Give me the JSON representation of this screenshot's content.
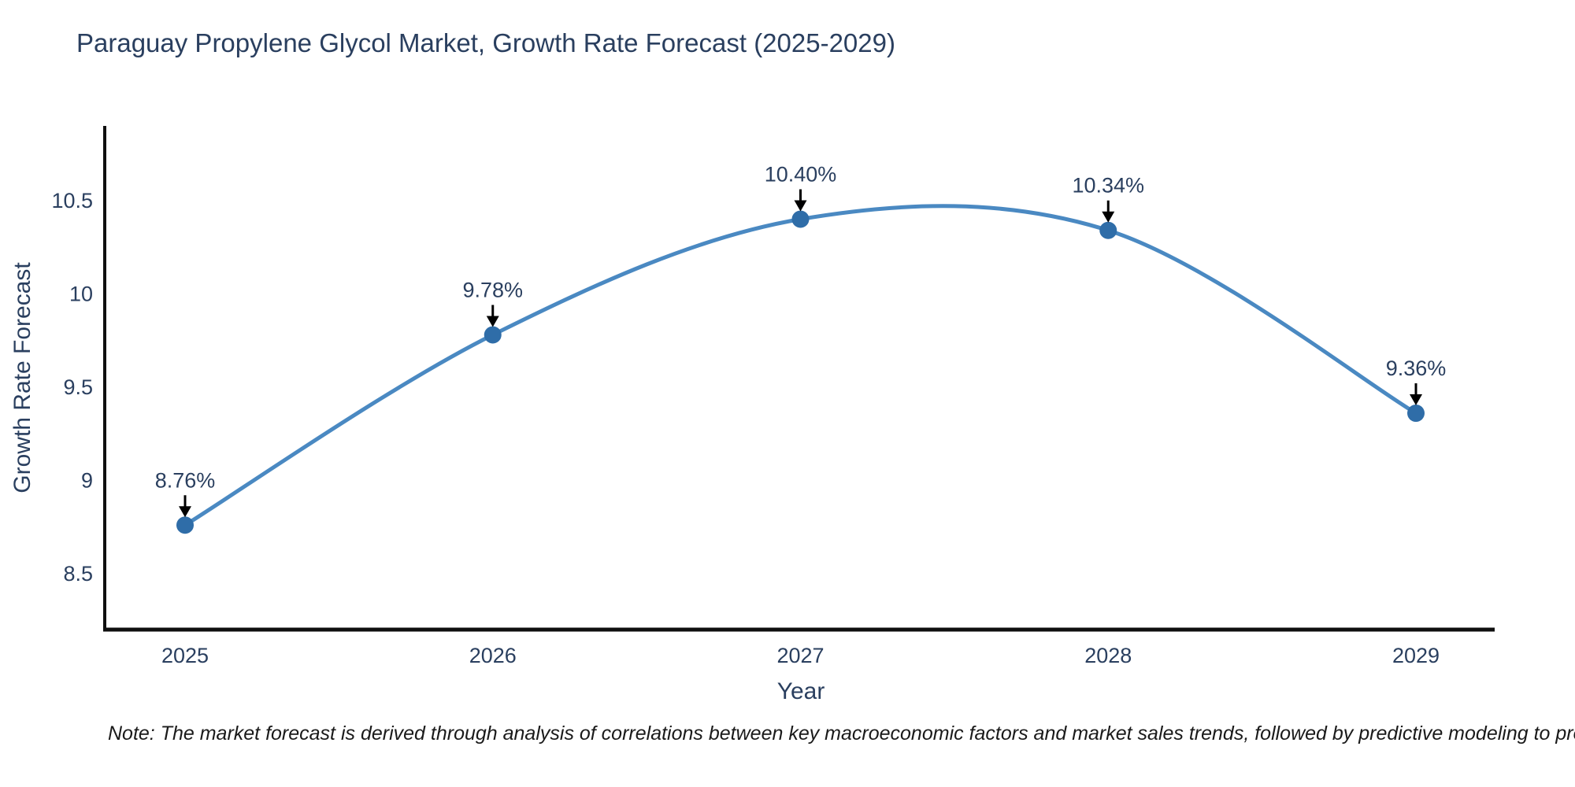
{
  "note": "Note: The market forecast is derived through analysis of correlations between key macroeconomic factors and market sales trends, followed by predictive modeling to project future sal",
  "colors": {
    "background": "#ffffff",
    "title_text": "#2a3f5f",
    "axis_text": "#2a3f5f",
    "axis_line": "#0f0f0f",
    "series_line": "#4a89c2",
    "marker_fill": "#2f6da8",
    "annotation_text": "#2a3f5f",
    "arrow": "#000000",
    "note_text": "#1a1a1a"
  },
  "chart_data": {
    "type": "line",
    "title": "Paraguay Propylene Glycol Market, Growth Rate Forecast (2025-2029)",
    "xlabel": "Year",
    "ylabel": "Growth Rate Forecast",
    "x": [
      2025,
      2026,
      2027,
      2028,
      2029
    ],
    "series": [
      {
        "name": "Growth Rate Forecast",
        "values": [
          8.76,
          9.78,
          10.4,
          10.34,
          9.36
        ]
      }
    ],
    "point_labels": [
      "8.76%",
      "9.78%",
      "10.40%",
      "10.34%",
      "9.36%"
    ],
    "xticks": [
      "2025",
      "2026",
      "2027",
      "2028",
      "2029"
    ],
    "yticks": [
      8.5,
      9,
      9.5,
      10,
      10.5
    ],
    "ylim": [
      8.2,
      10.9
    ],
    "grid": false,
    "legend": "none",
    "line_shape": "spline",
    "marker": "circle"
  }
}
